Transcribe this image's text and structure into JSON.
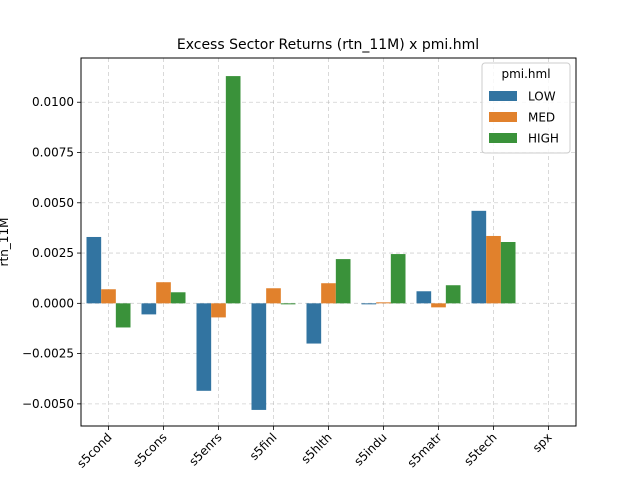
{
  "chart_data": {
    "type": "bar",
    "title": "Excess Sector Returns (rtn_11M) x pmi.hml",
    "xlabel": "",
    "ylabel": "rtn_11M",
    "categories": [
      "s5cond",
      "s5cons",
      "s5enrs",
      "s5finl",
      "s5hlth",
      "s5indu",
      "s5matr",
      "s5tech",
      "spx"
    ],
    "ylim": [
      -0.0061,
      0.0122
    ],
    "yticks": [
      -0.005,
      -0.0025,
      0.0,
      0.0025,
      0.005,
      0.0075,
      0.01
    ],
    "ytick_labels": [
      "−0.0050",
      "−0.0025",
      "0.0000",
      "0.0025",
      "0.0050",
      "0.0075",
      "0.0100"
    ],
    "grid": true,
    "legend": {
      "title": "pmi.hml",
      "placement": "top-right"
    },
    "series": [
      {
        "name": "LOW",
        "color": "#3274a1",
        "values": [
          0.0033,
          -0.00055,
          -0.00435,
          -0.0053,
          -0.002,
          -5e-05,
          0.0006,
          0.0046,
          0
        ]
      },
      {
        "name": "MED",
        "color": "#e1812c",
        "values": [
          0.0007,
          0.00105,
          -0.0007,
          0.00075,
          0.001,
          5e-05,
          -0.0002,
          0.00335,
          0
        ]
      },
      {
        "name": "HIGH",
        "color": "#3a923a",
        "values": [
          -0.0012,
          0.00055,
          0.0113,
          -5e-05,
          0.0022,
          0.00245,
          0.0009,
          0.00305,
          0
        ]
      }
    ]
  }
}
